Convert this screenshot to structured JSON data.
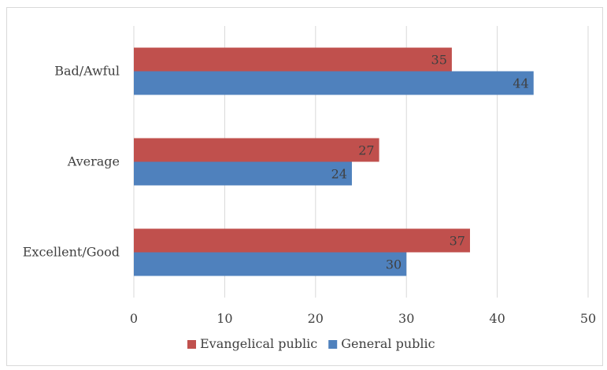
{
  "chart_data": {
    "type": "bar",
    "orientation": "horizontal",
    "categories": [
      "Bad/Awful",
      "Average",
      "Excellent/Good"
    ],
    "series": [
      {
        "name": "Evangelical public",
        "values": [
          35,
          27,
          37
        ],
        "color": "#c0504d"
      },
      {
        "name": "General public",
        "values": [
          44,
          24,
          30
        ],
        "color": "#4f81bd"
      }
    ],
    "xlim": [
      0,
      50
    ],
    "xticks": [
      0,
      10,
      20,
      30,
      40,
      50
    ],
    "grid": true,
    "legend": "bottom",
    "data_labels": true
  }
}
